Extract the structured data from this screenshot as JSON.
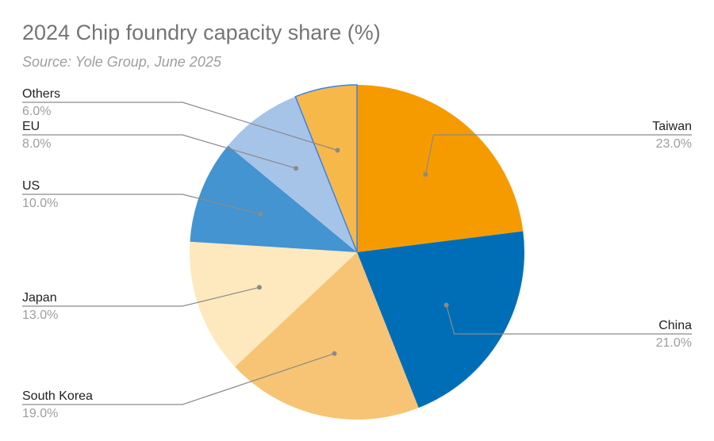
{
  "chart_data": {
    "type": "pie",
    "title": "2024 Chip foundry capacity share (%)",
    "subtitle": "Source: Yole Group, June 2025",
    "slices": [
      {
        "label": "Taiwan",
        "value": 23.0,
        "display": "23.0%",
        "color": "#f59b00"
      },
      {
        "label": "China",
        "value": 21.0,
        "display": "21.0%",
        "color": "#006eb7"
      },
      {
        "label": "South Korea",
        "value": 19.0,
        "display": "19.0%",
        "color": "#f6c474"
      },
      {
        "label": "Japan",
        "value": 13.0,
        "display": "13.0%",
        "color": "#fde9bd"
      },
      {
        "label": "US",
        "value": 10.0,
        "display": "10.0%",
        "color": "#4394d0"
      },
      {
        "label": "EU",
        "value": 8.0,
        "display": "8.0%",
        "color": "#a6c4e8"
      },
      {
        "label": "Others",
        "value": 6.0,
        "display": "6.0%",
        "color": "#f7b84a"
      }
    ],
    "highlighted_slice": "Others",
    "highlight_stroke": "#3b82e8",
    "legend": "none"
  }
}
